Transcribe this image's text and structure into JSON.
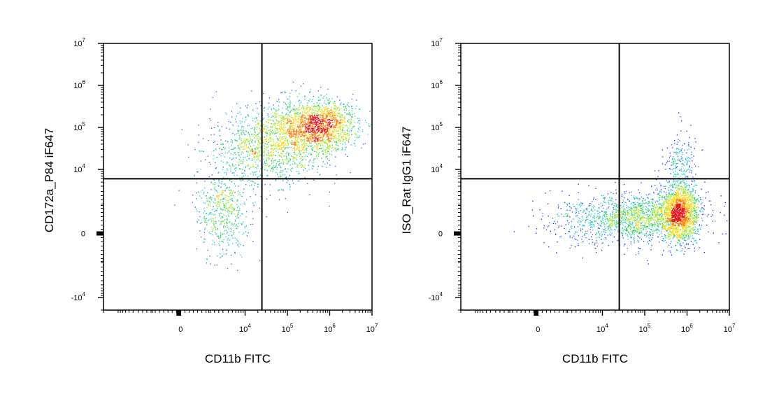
{
  "chart_data": [
    {
      "type": "scatter",
      "subtype": "density-dot-plot",
      "xlabel": "CD11b FITC",
      "ylabel": "CD172a_P84 iF647",
      "x_scale": "biexponential",
      "y_scale": "biexponential",
      "x_ticks": [
        {
          "base": "0",
          "exp": ""
        },
        {
          "base": "10",
          "exp": "4"
        },
        {
          "base": "10",
          "exp": "5"
        },
        {
          "base": "10",
          "exp": "6"
        },
        {
          "base": "10",
          "exp": "7"
        }
      ],
      "y_ticks": [
        {
          "base": "-10",
          "exp": "4"
        },
        {
          "base": "0",
          "exp": ""
        },
        {
          "base": "10",
          "exp": "4"
        },
        {
          "base": "10",
          "exp": "5"
        },
        {
          "base": "10",
          "exp": "6"
        },
        {
          "base": "10",
          "exp": "7"
        }
      ],
      "quadrant_gate": {
        "x": 25000,
        "y": 6000
      },
      "populations": [
        {
          "x": 600000,
          "y": 120000,
          "sx": 0.35,
          "sy": 0.28,
          "n": 1400
        },
        {
          "x": 150000,
          "y": 60000,
          "sx": 0.5,
          "sy": 0.45,
          "n": 700
        },
        {
          "x": 25000,
          "y": 35000,
          "sx": 0.6,
          "sy": 0.45,
          "n": 900
        },
        {
          "x": 3000,
          "y": 1500,
          "sx": 0.3,
          "sy": 0.5,
          "n": 500
        }
      ]
    },
    {
      "type": "scatter",
      "subtype": "density-dot-plot",
      "xlabel": "CD11b FITC",
      "ylabel": "ISO_Rat IgG1 iF647",
      "x_scale": "biexponential",
      "y_scale": "biexponential",
      "x_ticks": [
        {
          "base": "0",
          "exp": ""
        },
        {
          "base": "10",
          "exp": "4"
        },
        {
          "base": "10",
          "exp": "5"
        },
        {
          "base": "10",
          "exp": "6"
        },
        {
          "base": "10",
          "exp": "7"
        }
      ],
      "y_ticks": [
        {
          "base": "-10",
          "exp": "4"
        },
        {
          "base": "0",
          "exp": ""
        },
        {
          "base": "10",
          "exp": "4"
        },
        {
          "base": "10",
          "exp": "5"
        },
        {
          "base": "10",
          "exp": "6"
        },
        {
          "base": "10",
          "exp": "7"
        }
      ],
      "quadrant_gate": {
        "x": 25000,
        "y": 6000
      },
      "populations": [
        {
          "x": 650000,
          "y": 1500,
          "sx": 0.18,
          "sy": 0.35,
          "n": 1500
        },
        {
          "x": 200000,
          "y": 1200,
          "sx": 0.5,
          "sy": 0.3,
          "n": 700
        },
        {
          "x": 20000,
          "y": 1100,
          "sx": 0.7,
          "sy": 0.3,
          "n": 900
        },
        {
          "x": 700000,
          "y": 15000,
          "sx": 0.15,
          "sy": 0.35,
          "n": 200
        }
      ]
    }
  ]
}
